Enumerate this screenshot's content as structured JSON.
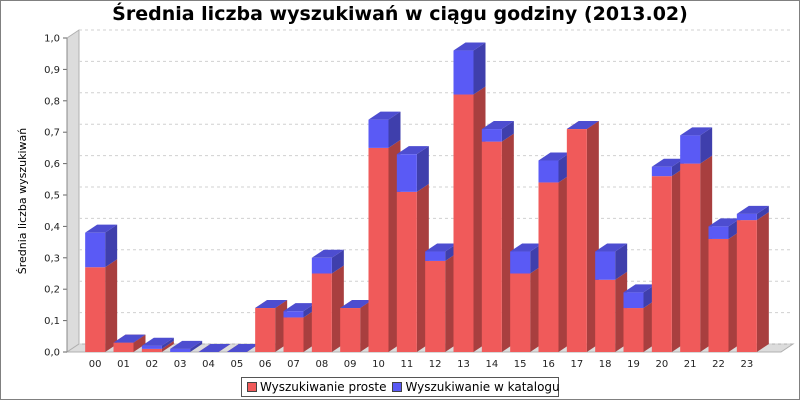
{
  "chart_data": {
    "type": "bar",
    "stacked": true,
    "three_d": true,
    "title": "Średnia liczba wyszukiwań w ciągu godziny (2013.02)",
    "xlabel": "",
    "ylabel": "Średnia liczba wyszukiwań",
    "ylim": [
      0,
      1.0
    ],
    "yticks": [
      "0,0",
      "0,1",
      "0,2",
      "0,3",
      "0,4",
      "0,5",
      "0,6",
      "0,7",
      "0,8",
      "0,9",
      "1,0"
    ],
    "grid": true,
    "legend_position": "bottom",
    "categories": [
      "00",
      "01",
      "02",
      "03",
      "04",
      "05",
      "06",
      "07",
      "08",
      "09",
      "10",
      "11",
      "12",
      "13",
      "14",
      "15",
      "16",
      "17",
      "18",
      "19",
      "20",
      "21",
      "22",
      "23"
    ],
    "series": [
      {
        "name": "Wyszukiwanie proste",
        "color": "#f05a5a",
        "values": [
          0.27,
          0.03,
          0.01,
          0.0,
          0.0,
          0.0,
          0.14,
          0.11,
          0.25,
          0.14,
          0.65,
          0.51,
          0.29,
          0.82,
          0.67,
          0.25,
          0.54,
          0.71,
          0.23,
          0.14,
          0.56,
          0.6,
          0.36,
          0.42
        ]
      },
      {
        "name": "Wyszukiwanie w katalogu",
        "color": "#5a5af5",
        "values": [
          0.11,
          0.0,
          0.01,
          0.01,
          0.0,
          0.0,
          0.0,
          0.02,
          0.05,
          0.0,
          0.09,
          0.12,
          0.03,
          0.14,
          0.04,
          0.07,
          0.07,
          0.0,
          0.09,
          0.05,
          0.03,
          0.09,
          0.04,
          0.02
        ]
      }
    ]
  }
}
